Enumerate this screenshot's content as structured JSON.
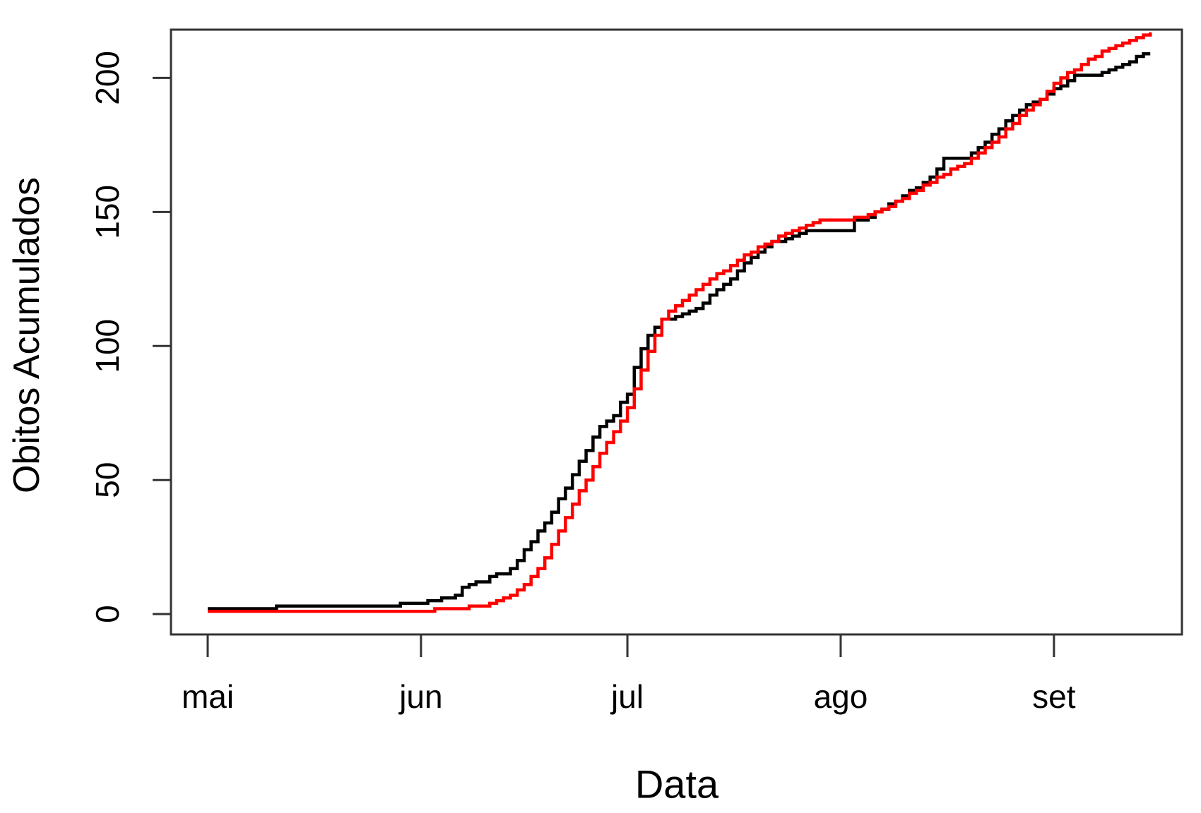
{
  "chart_data": {
    "type": "line",
    "line_style": "step",
    "title": "",
    "xlabel": "Data",
    "ylabel": "Obitos Acumulados",
    "grid": false,
    "legend": null,
    "x_encoding": "days since first x tick (mai = day 0)",
    "xlim_days": [
      -5.34,
      141.6
    ],
    "ylim": [
      -7.6,
      218
    ],
    "x_ticks": [
      {
        "day": 0,
        "label": "mai"
      },
      {
        "day": 31,
        "label": "jun"
      },
      {
        "day": 61,
        "label": "jul"
      },
      {
        "day": 92,
        "label": "ago"
      },
      {
        "day": 123,
        "label": "set"
      }
    ],
    "y_ticks": [
      0,
      50,
      100,
      150,
      200
    ],
    "series": [
      {
        "name": "black-line",
        "color": "#000000",
        "points": [
          [
            0,
            2
          ],
          [
            10,
            3
          ],
          [
            28,
            4
          ],
          [
            32,
            5
          ],
          [
            34,
            6
          ],
          [
            36,
            7
          ],
          [
            37,
            10
          ],
          [
            38,
            11
          ],
          [
            39,
            12
          ],
          [
            41,
            14
          ],
          [
            42,
            15
          ],
          [
            44,
            17
          ],
          [
            45,
            20
          ],
          [
            46,
            24
          ],
          [
            47,
            27
          ],
          [
            48,
            31
          ],
          [
            49,
            34
          ],
          [
            50,
            38
          ],
          [
            51,
            43
          ],
          [
            52,
            47
          ],
          [
            53,
            52
          ],
          [
            54,
            57
          ],
          [
            55,
            61
          ],
          [
            56,
            66
          ],
          [
            57,
            70
          ],
          [
            58,
            72
          ],
          [
            59,
            74
          ],
          [
            60,
            79
          ],
          [
            61,
            82
          ],
          [
            62,
            92
          ],
          [
            63,
            99
          ],
          [
            64,
            104
          ],
          [
            65,
            107
          ],
          [
            66,
            110
          ],
          [
            68,
            111
          ],
          [
            69,
            112
          ],
          [
            70,
            113
          ],
          [
            71,
            114
          ],
          [
            72,
            116
          ],
          [
            73,
            119
          ],
          [
            74,
            121
          ],
          [
            75,
            123
          ],
          [
            76,
            125
          ],
          [
            77,
            128
          ],
          [
            78,
            131
          ],
          [
            79,
            133
          ],
          [
            80,
            135
          ],
          [
            81,
            137
          ],
          [
            82,
            139
          ],
          [
            84,
            140
          ],
          [
            85,
            141
          ],
          [
            86,
            142
          ],
          [
            87,
            143
          ],
          [
            93,
            143
          ],
          [
            94,
            147
          ],
          [
            96,
            148
          ],
          [
            97,
            150
          ],
          [
            98,
            151
          ],
          [
            99,
            153
          ],
          [
            100,
            154
          ],
          [
            101,
            156
          ],
          [
            102,
            158
          ],
          [
            103,
            159
          ],
          [
            104,
            161
          ],
          [
            105,
            163
          ],
          [
            106,
            166
          ],
          [
            107,
            170
          ],
          [
            110,
            170
          ],
          [
            111,
            172
          ],
          [
            112,
            174
          ],
          [
            113,
            176
          ],
          [
            114,
            179
          ],
          [
            115,
            181
          ],
          [
            116,
            184
          ],
          [
            117,
            186
          ],
          [
            118,
            188
          ],
          [
            119,
            190
          ],
          [
            120,
            191
          ],
          [
            121,
            192
          ],
          [
            122,
            194
          ],
          [
            123,
            196
          ],
          [
            124,
            197
          ],
          [
            125,
            199
          ],
          [
            126,
            201
          ],
          [
            129,
            201
          ],
          [
            130,
            202
          ],
          [
            131,
            203
          ],
          [
            132,
            204
          ],
          [
            133,
            205
          ],
          [
            134,
            206
          ],
          [
            135,
            208
          ],
          [
            136,
            209
          ],
          [
            137,
            209
          ]
        ]
      },
      {
        "name": "red-line",
        "color": "#ff0000",
        "points": [
          [
            0,
            1
          ],
          [
            30,
            1
          ],
          [
            33,
            2
          ],
          [
            38,
            3
          ],
          [
            41,
            4
          ],
          [
            42,
            5
          ],
          [
            43,
            6
          ],
          [
            44,
            7
          ],
          [
            45,
            9
          ],
          [
            46,
            11
          ],
          [
            47,
            14
          ],
          [
            48,
            17
          ],
          [
            49,
            21
          ],
          [
            50,
            26
          ],
          [
            51,
            31
          ],
          [
            52,
            36
          ],
          [
            53,
            41
          ],
          [
            54,
            46
          ],
          [
            55,
            50
          ],
          [
            56,
            55
          ],
          [
            57,
            60
          ],
          [
            58,
            64
          ],
          [
            59,
            68
          ],
          [
            60,
            72
          ],
          [
            61,
            77
          ],
          [
            62,
            84
          ],
          [
            63,
            91
          ],
          [
            64,
            98
          ],
          [
            65,
            104
          ],
          [
            66,
            110
          ],
          [
            67,
            113
          ],
          [
            68,
            115
          ],
          [
            69,
            117
          ],
          [
            70,
            119
          ],
          [
            71,
            121
          ],
          [
            72,
            123
          ],
          [
            73,
            125
          ],
          [
            74,
            127
          ],
          [
            75,
            128
          ],
          [
            76,
            130
          ],
          [
            77,
            132
          ],
          [
            78,
            134
          ],
          [
            79,
            135
          ],
          [
            80,
            137
          ],
          [
            81,
            138
          ],
          [
            82,
            139
          ],
          [
            83,
            141
          ],
          [
            84,
            142
          ],
          [
            85,
            143
          ],
          [
            86,
            144
          ],
          [
            87,
            145
          ],
          [
            88,
            146
          ],
          [
            89,
            147
          ],
          [
            93,
            147
          ],
          [
            94,
            148
          ],
          [
            95,
            148
          ],
          [
            96,
            149
          ],
          [
            97,
            150
          ],
          [
            98,
            151
          ],
          [
            99,
            152
          ],
          [
            100,
            154
          ],
          [
            101,
            155
          ],
          [
            102,
            157
          ],
          [
            103,
            158
          ],
          [
            104,
            160
          ],
          [
            105,
            161
          ],
          [
            106,
            163
          ],
          [
            107,
            164
          ],
          [
            108,
            166
          ],
          [
            109,
            167
          ],
          [
            110,
            168
          ],
          [
            111,
            170
          ],
          [
            112,
            172
          ],
          [
            113,
            174
          ],
          [
            114,
            176
          ],
          [
            115,
            178
          ],
          [
            116,
            181
          ],
          [
            117,
            183
          ],
          [
            118,
            186
          ],
          [
            119,
            188
          ],
          [
            120,
            190
          ],
          [
            121,
            192
          ],
          [
            122,
            195
          ],
          [
            123,
            198
          ],
          [
            124,
            200
          ],
          [
            125,
            202
          ],
          [
            126,
            203
          ],
          [
            127,
            205
          ],
          [
            128,
            207
          ],
          [
            129,
            208
          ],
          [
            130,
            210
          ],
          [
            131,
            211
          ],
          [
            132,
            212
          ],
          [
            133,
            213
          ],
          [
            134,
            214
          ],
          [
            135,
            215
          ],
          [
            136,
            216
          ],
          [
            137,
            217
          ]
        ]
      }
    ]
  }
}
